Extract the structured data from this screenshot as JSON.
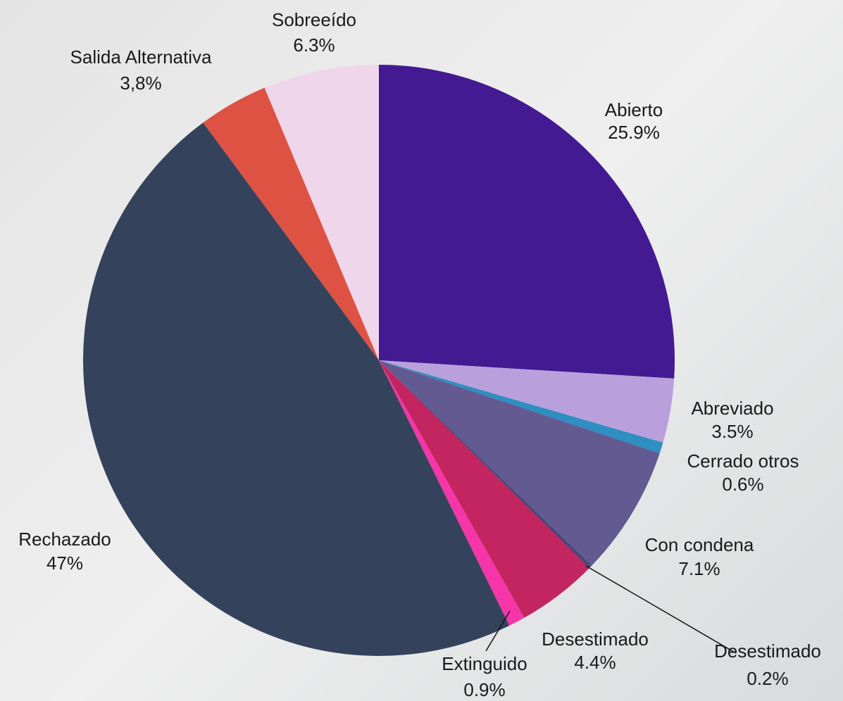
{
  "chart_data": {
    "type": "pie",
    "categories": [
      "Abierto",
      "Abreviado",
      "Cerrado otros",
      "Con condena",
      "Desestimado",
      "Desestimado",
      "Extinguido",
      "Rechazado",
      "Salida Alternativa",
      "Sobreeído"
    ],
    "values": [
      25.9,
      3.5,
      0.6,
      7.1,
      0.2,
      4.4,
      0.9,
      47,
      3.8,
      6.3
    ],
    "value_labels": [
      "25.9%",
      "3.5%",
      "0.6%",
      "7.1%",
      "0.2%",
      "4.4%",
      "0.9%",
      "47%",
      "3,8%",
      "6.3%"
    ],
    "colors": [
      "#431a91",
      "#b9a0dc",
      "#2e8fc0",
      "#625a91",
      "#4e4478",
      "#c2255f",
      "#f535a8",
      "#34435b",
      "#de5244",
      "#f0d6ea"
    ]
  }
}
